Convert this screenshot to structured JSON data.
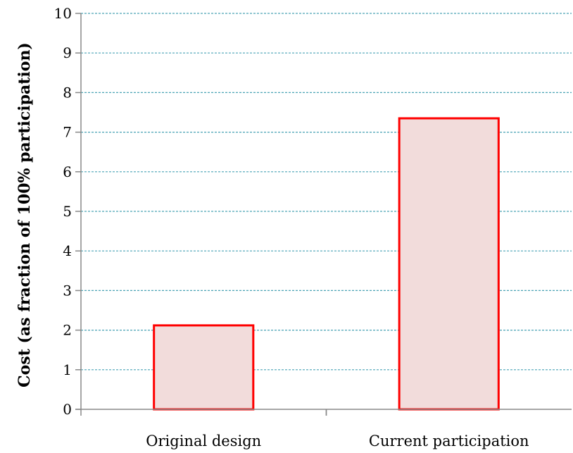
{
  "chart_data": {
    "type": "bar",
    "categories": [
      "Original design",
      "Current participation"
    ],
    "values": [
      2.12,
      7.35
    ],
    "title": "",
    "xlabel": "",
    "ylabel": "Cost (as fraction of 100% participation)",
    "ylim": [
      0,
      10
    ],
    "yticks": [
      0,
      1,
      2,
      3,
      4,
      5,
      6,
      7,
      8,
      9,
      10
    ],
    "grid": true,
    "legend": "none",
    "colors": {
      "bar_fill": "#f2dcdb",
      "bar_stroke": "#ff0000",
      "gridline": "#4aa3b5",
      "axis": "#888888"
    }
  }
}
